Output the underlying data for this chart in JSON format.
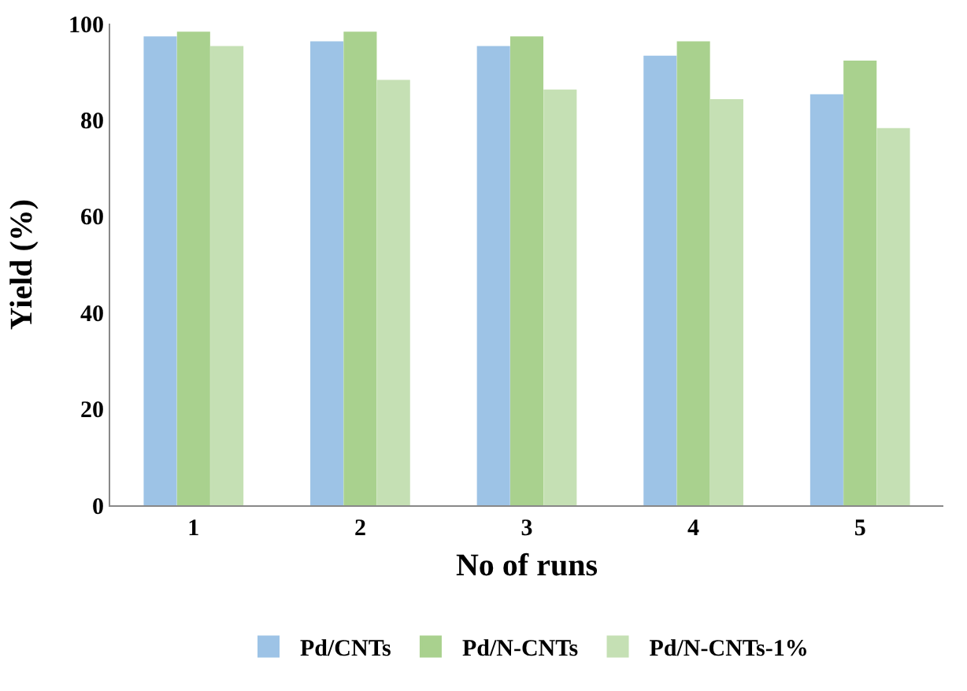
{
  "chart_data": {
    "type": "bar",
    "xlabel": "No of runs",
    "ylabel": "Yield (%)",
    "categories": [
      "1",
      "2",
      "3",
      "4",
      "5"
    ],
    "series": [
      {
        "name": "Pd/CNTs",
        "color": "#9dc3e6",
        "values": [
          97,
          96,
          95,
          93,
          85
        ]
      },
      {
        "name": "Pd/N-CNTs",
        "color": "#a9d18e",
        "values": [
          98,
          98,
          97,
          96,
          92
        ]
      },
      {
        "name": "Pd/N-CNTs-1%",
        "color": "#c5e0b4",
        "values": [
          95,
          88,
          86,
          84,
          78
        ]
      }
    ],
    "ylim": [
      0,
      100
    ],
    "yticks": [
      0,
      20,
      40,
      60,
      80,
      100
    ],
    "grid": false,
    "legend": "bottom"
  }
}
